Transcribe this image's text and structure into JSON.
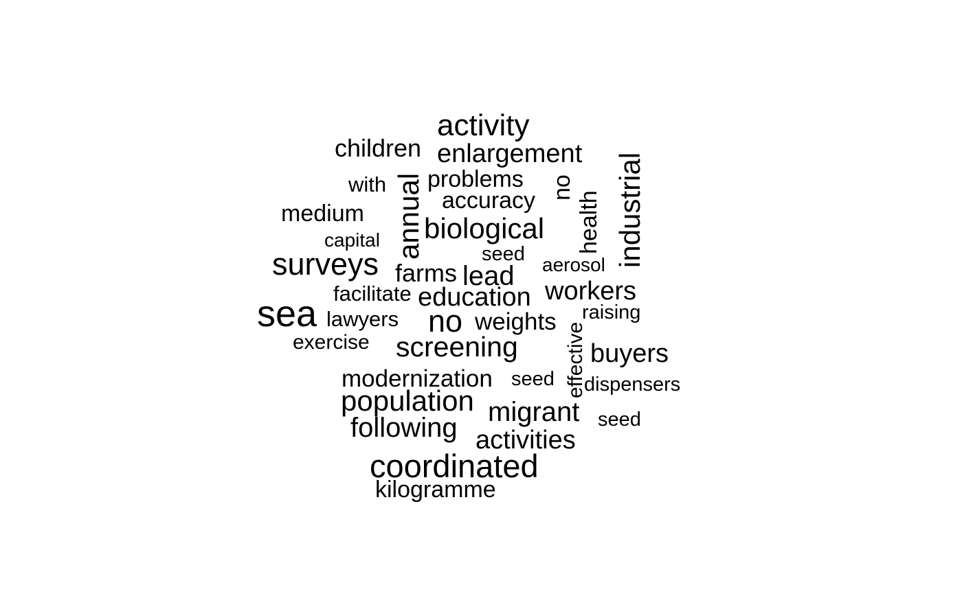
{
  "cloud": {
    "words": [
      {
        "text": "activity",
        "rotated": false
      },
      {
        "text": "children",
        "rotated": false
      },
      {
        "text": "enlargement",
        "rotated": false
      },
      {
        "text": "industrial",
        "rotated": true
      },
      {
        "text": "annual",
        "rotated": true
      },
      {
        "text": "with",
        "rotated": false
      },
      {
        "text": "problems",
        "rotated": false
      },
      {
        "text": "no",
        "rotated": true
      },
      {
        "text": "health",
        "rotated": true
      },
      {
        "text": "accuracy",
        "rotated": false
      },
      {
        "text": "medium",
        "rotated": false
      },
      {
        "text": "biological",
        "rotated": false
      },
      {
        "text": "capital",
        "rotated": false
      },
      {
        "text": "seed",
        "rotated": false
      },
      {
        "text": "surveys",
        "rotated": false
      },
      {
        "text": "aerosol",
        "rotated": false
      },
      {
        "text": "farms",
        "rotated": false
      },
      {
        "text": "lead",
        "rotated": false
      },
      {
        "text": "workers",
        "rotated": false
      },
      {
        "text": "facilitate",
        "rotated": false
      },
      {
        "text": "education",
        "rotated": false
      },
      {
        "text": "sea",
        "rotated": false
      },
      {
        "text": "raising",
        "rotated": false
      },
      {
        "text": "lawyers",
        "rotated": false
      },
      {
        "text": "no",
        "rotated": false
      },
      {
        "text": "weights",
        "rotated": false
      },
      {
        "text": "effective",
        "rotated": true
      },
      {
        "text": "exercise",
        "rotated": false
      },
      {
        "text": "screening",
        "rotated": false
      },
      {
        "text": "buyers",
        "rotated": false
      },
      {
        "text": "modernization",
        "rotated": false
      },
      {
        "text": "seed",
        "rotated": false
      },
      {
        "text": "dispensers",
        "rotated": false
      },
      {
        "text": "population",
        "rotated": false
      },
      {
        "text": "migrant",
        "rotated": false
      },
      {
        "text": "seed",
        "rotated": false
      },
      {
        "text": "following",
        "rotated": false
      },
      {
        "text": "activities",
        "rotated": false
      },
      {
        "text": "coordinated",
        "rotated": false
      },
      {
        "text": "kilogramme",
        "rotated": false
      }
    ]
  }
}
